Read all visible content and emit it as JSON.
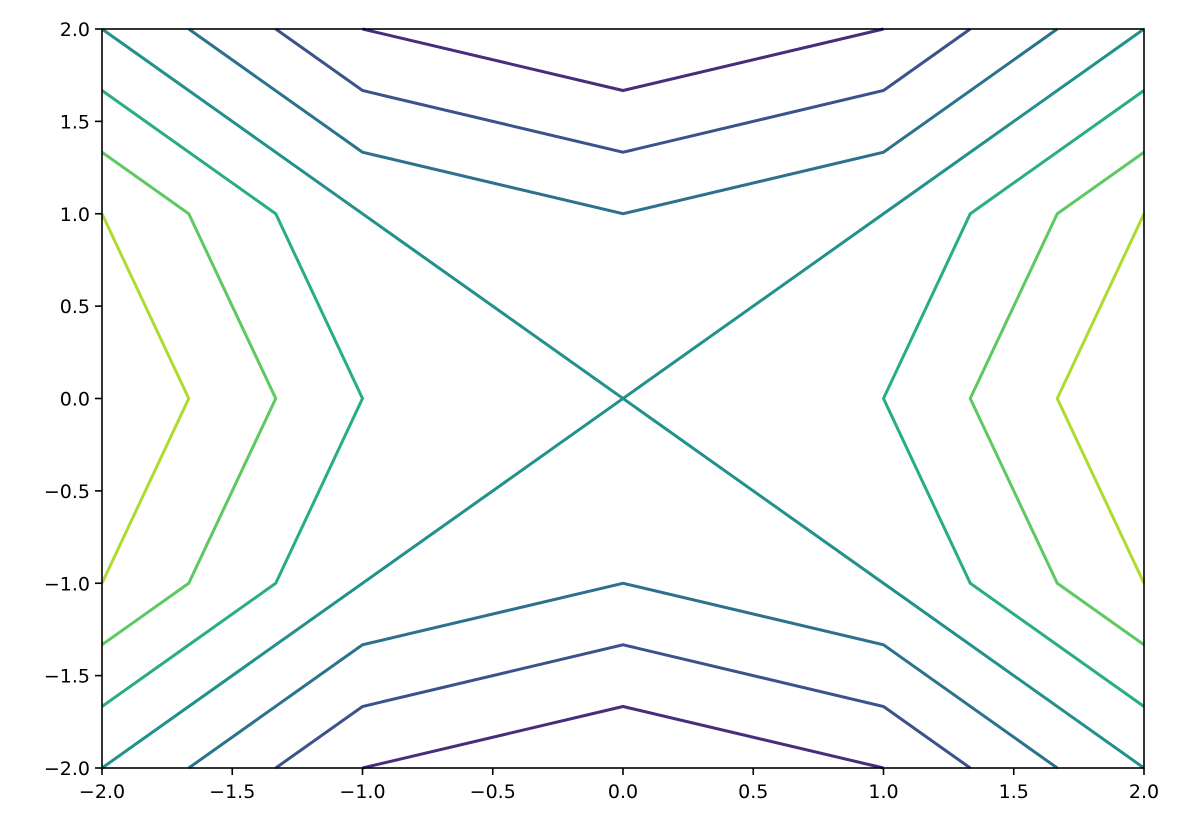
{
  "chart_data": {
    "type": "contour",
    "title": "",
    "xlabel": "",
    "ylabel": "",
    "xlim": [
      -2,
      2
    ],
    "ylim": [
      -2,
      2
    ],
    "grid": false,
    "xticks": [
      -2.0,
      -1.5,
      -1.0,
      -0.5,
      0.0,
      0.5,
      1.0,
      1.5,
      2.0
    ],
    "xtick_labels": [
      "−2.0",
      "−1.5",
      "−1.0",
      "−0.5",
      "0.0",
      "0.5",
      "1.0",
      "1.5",
      "2.0"
    ],
    "yticks": [
      -2.0,
      -1.5,
      -1.0,
      -0.5,
      0.0,
      0.5,
      1.0,
      1.5,
      2.0
    ],
    "ytick_labels": [
      "−2.0",
      "−1.5",
      "−1.0",
      "−0.5",
      "0.0",
      "0.5",
      "1.0",
      "1.5",
      "2.0"
    ],
    "colormap": "viridis",
    "levels": [
      {
        "level": -3,
        "color": "#472d7b",
        "lines": [
          [
            [
              -1,
              2
            ],
            [
              0,
              1.667
            ],
            [
              1,
              2
            ]
          ],
          [
            [
              -1,
              -2
            ],
            [
              0,
              -1.667
            ],
            [
              1,
              -2
            ]
          ]
        ]
      },
      {
        "level": -2,
        "color": "#3b528b",
        "lines": [
          [
            [
              -1.333,
              2
            ],
            [
              -1,
              1.667
            ],
            [
              0,
              1.333
            ],
            [
              1,
              1.667
            ],
            [
              1.333,
              2
            ]
          ],
          [
            [
              -1.333,
              -2
            ],
            [
              -1,
              -1.667
            ],
            [
              0,
              -1.333
            ],
            [
              1,
              -1.667
            ],
            [
              1.333,
              -2
            ]
          ]
        ]
      },
      {
        "level": -1,
        "color": "#2c728e",
        "lines": [
          [
            [
              -1.667,
              2
            ],
            [
              -1,
              1.333
            ],
            [
              0,
              1
            ],
            [
              1,
              1.333
            ],
            [
              1.667,
              2
            ]
          ],
          [
            [
              -1.667,
              -2
            ],
            [
              -1,
              -1.333
            ],
            [
              0,
              -1
            ],
            [
              1,
              -1.333
            ],
            [
              1.667,
              -2
            ]
          ]
        ]
      },
      {
        "level": 0,
        "color": "#21918c",
        "lines": [
          [
            [
              -2,
              2
            ],
            [
              2,
              -2
            ]
          ],
          [
            [
              -2,
              -2
            ],
            [
              2,
              2
            ]
          ]
        ]
      },
      {
        "level": 1,
        "color": "#28ae80",
        "lines": [
          [
            [
              -2,
              1.667
            ],
            [
              -1.333,
              1
            ],
            [
              -1,
              0
            ],
            [
              -1.333,
              -1
            ],
            [
              -2,
              -1.667
            ]
          ],
          [
            [
              2,
              1.667
            ],
            [
              1.333,
              1
            ],
            [
              1,
              0
            ],
            [
              1.333,
              -1
            ],
            [
              2,
              -1.667
            ]
          ]
        ]
      },
      {
        "level": 2,
        "color": "#5ec962",
        "lines": [
          [
            [
              -2,
              1.333
            ],
            [
              -1.667,
              1
            ],
            [
              -1.333,
              0
            ],
            [
              -1.667,
              -1
            ],
            [
              -2,
              -1.333
            ]
          ],
          [
            [
              2,
              1.333
            ],
            [
              1.667,
              1
            ],
            [
              1.333,
              0
            ],
            [
              1.667,
              -1
            ],
            [
              2,
              -1.333
            ]
          ]
        ]
      },
      {
        "level": 3,
        "color": "#addc30",
        "lines": [
          [
            [
              -2,
              1
            ],
            [
              -1.667,
              0
            ],
            [
              -2,
              -1
            ]
          ],
          [
            [
              2,
              1
            ],
            [
              1.667,
              0
            ],
            [
              2,
              -1
            ]
          ]
        ]
      }
    ]
  }
}
